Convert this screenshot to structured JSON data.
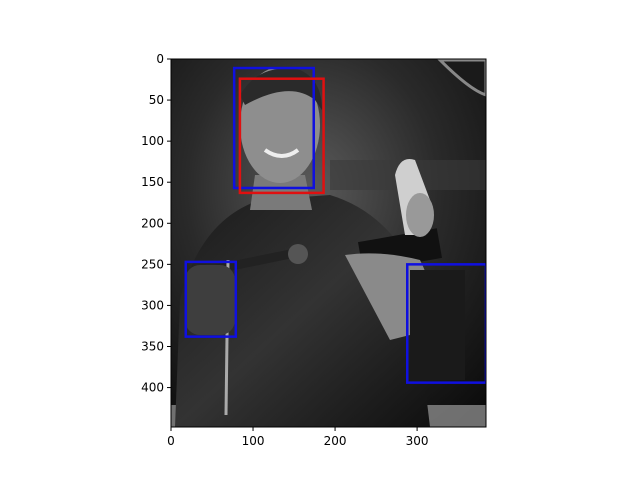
{
  "chart_data": {
    "type": "image_with_boxes",
    "image": {
      "description": "Grayscale photo",
      "width": 384,
      "height": 448
    },
    "xlim": [
      0,
      384
    ],
    "ylim": [
      448,
      0
    ],
    "xticks": [
      0,
      100,
      200,
      300
    ],
    "yticks": [
      0,
      50,
      100,
      150,
      200,
      250,
      300,
      350,
      400
    ],
    "boxes": [
      {
        "name": "box-blue-face",
        "color": "#1010e0",
        "x0": 77,
        "y0": 11,
        "x1": 174,
        "y1": 157
      },
      {
        "name": "box-red-face",
        "color": "#e01010",
        "x0": 84,
        "y0": 24,
        "x1": 186,
        "y1": 163
      },
      {
        "name": "box-blue-left-hand",
        "color": "#1010e0",
        "x0": 18,
        "y0": 247,
        "x1": 79,
        "y1": 338
      },
      {
        "name": "box-blue-right-hand",
        "color": "#1010e0",
        "x0": 288,
        "y0": 250,
        "x1": 384,
        "y1": 394
      }
    ]
  }
}
